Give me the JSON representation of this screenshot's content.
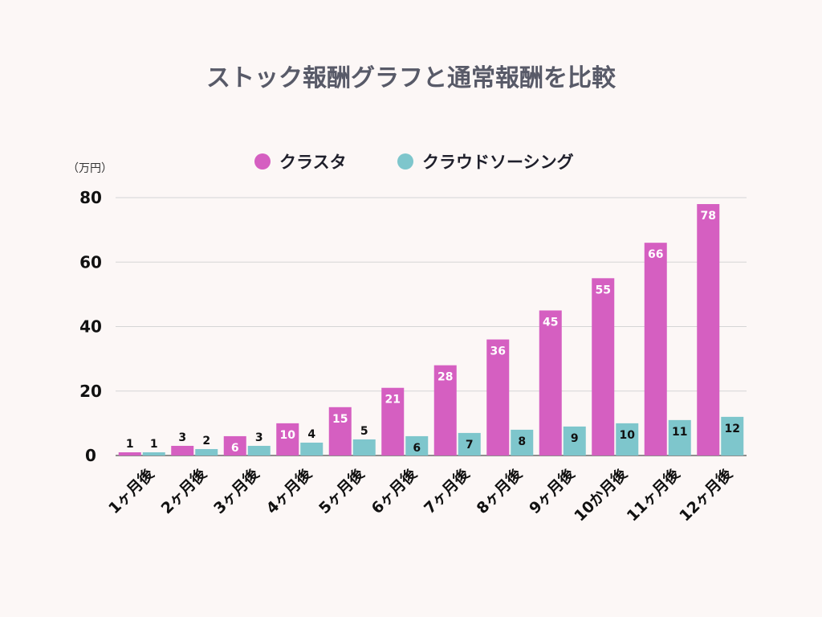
{
  "chart_data": {
    "type": "bar",
    "title": "ストック報酬グラフと通常報酬を比較",
    "unit_label": "（万円）",
    "categories": [
      "1ヶ月後",
      "2ヶ月後",
      "3ヶ月後",
      "4ヶ月後",
      "5ヶ月後",
      "6ヶ月後",
      "7ヶ月後",
      "8ヶ月後",
      "9ヶ月後",
      "10か月後",
      "11ヶ月後",
      "12ヶ月後"
    ],
    "series": [
      {
        "name": "クラスタ",
        "color": "#d55fc1",
        "values": [
          1,
          3,
          6,
          10,
          15,
          21,
          28,
          36,
          45,
          55,
          66,
          78
        ]
      },
      {
        "name": "クラウドソーシング",
        "color": "#7ec6cc",
        "values": [
          1,
          2,
          3,
          4,
          5,
          6,
          7,
          8,
          9,
          10,
          11,
          12
        ]
      }
    ],
    "yticks": [
      0,
      20,
      40,
      60,
      80
    ],
    "ylim": [
      0,
      80
    ],
    "grid": true,
    "legend_position": "top-center"
  }
}
